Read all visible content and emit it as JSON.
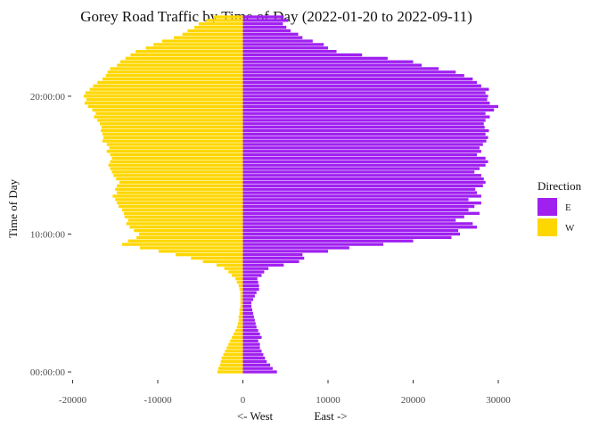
{
  "chart_data": {
    "type": "bar",
    "orientation": "horizontal",
    "title": "Gorey Road Traffic by Time of Day (2022-01-20 to 2022-09-11)",
    "xlabel_left": "<- West",
    "xlabel_right": "East ->",
    "ylabel": "Time of Day",
    "xlim": [
      -20000,
      30000
    ],
    "xticks": [
      -20000,
      -10000,
      0,
      10000,
      20000,
      30000
    ],
    "xtick_labels": [
      "-20000",
      "-10000",
      "0",
      "10000",
      "20000",
      "30000"
    ],
    "yticks_hours": [
      0,
      10,
      20
    ],
    "ytick_labels": [
      "00:00:00",
      "10:00:00",
      "20:00:00"
    ],
    "grid": false,
    "legend": {
      "title": "Direction",
      "position": "right",
      "entries": [
        {
          "key": "E",
          "color": "#a020f0"
        },
        {
          "key": "W",
          "color": "#ffd700"
        }
      ]
    },
    "bin_minutes": 15,
    "series": [
      {
        "name": "E",
        "color": "#a020f0",
        "values": [
          4000,
          3500,
          3200,
          2800,
          2600,
          2400,
          2200,
          2000,
          2000,
          1800,
          2200,
          2000,
          1800,
          1600,
          1500,
          1400,
          1300,
          1200,
          1100,
          1000,
          1000,
          1200,
          1400,
          1600,
          1900,
          1900,
          1800,
          1700,
          2200,
          2500,
          3000,
          4800,
          6600,
          7200,
          7000,
          10000,
          12500,
          16500,
          20000,
          24500,
          25500,
          25300,
          27500,
          27000,
          25000,
          26000,
          27800,
          26500,
          27200,
          28000,
          26500,
          28000,
          27500,
          27300,
          28200,
          28500,
          28300,
          28000,
          27200,
          27800,
          28500,
          28800,
          28500,
          27500,
          28000,
          27800,
          28200,
          28600,
          28800,
          28500,
          28900,
          28400,
          28300,
          28500,
          29000,
          28500,
          29500,
          30000,
          29000,
          28700,
          28800,
          28500,
          28900,
          28000,
          27500,
          27000,
          26000,
          25000,
          23000,
          21000,
          20000,
          17000,
          14000,
          11000,
          10000,
          9500,
          8200,
          7000,
          6500,
          5600,
          5100,
          4700,
          5300,
          4800
        ]
      },
      {
        "name": "W",
        "color": "#ffd700",
        "values": [
          3000,
          2900,
          2700,
          2600,
          2500,
          2300,
          2100,
          1900,
          1700,
          1500,
          1300,
          1100,
          900,
          700,
          600,
          500,
          500,
          400,
          400,
          300,
          300,
          300,
          300,
          300,
          400,
          500,
          700,
          900,
          1300,
          1700,
          2200,
          3100,
          4700,
          6100,
          7900,
          9900,
          12100,
          14200,
          13500,
          12500,
          12200,
          12800,
          13300,
          13700,
          13500,
          13900,
          14000,
          14200,
          14600,
          14800,
          15000,
          15300,
          14800,
          15000,
          14800,
          14500,
          14900,
          15200,
          15400,
          15600,
          15800,
          15600,
          15400,
          15600,
          16000,
          15700,
          16000,
          16500,
          16400,
          16500,
          16700,
          16600,
          16800,
          17100,
          17500,
          17300,
          17700,
          18200,
          18600,
          18400,
          18700,
          18500,
          18000,
          17600,
          17100,
          16500,
          16100,
          15900,
          15600,
          14800,
          14400,
          13800,
          13200,
          12600,
          11400,
          10500,
          9500,
          8100,
          7100,
          6500,
          5700,
          5200,
          4300,
          3500
        ]
      }
    ]
  }
}
